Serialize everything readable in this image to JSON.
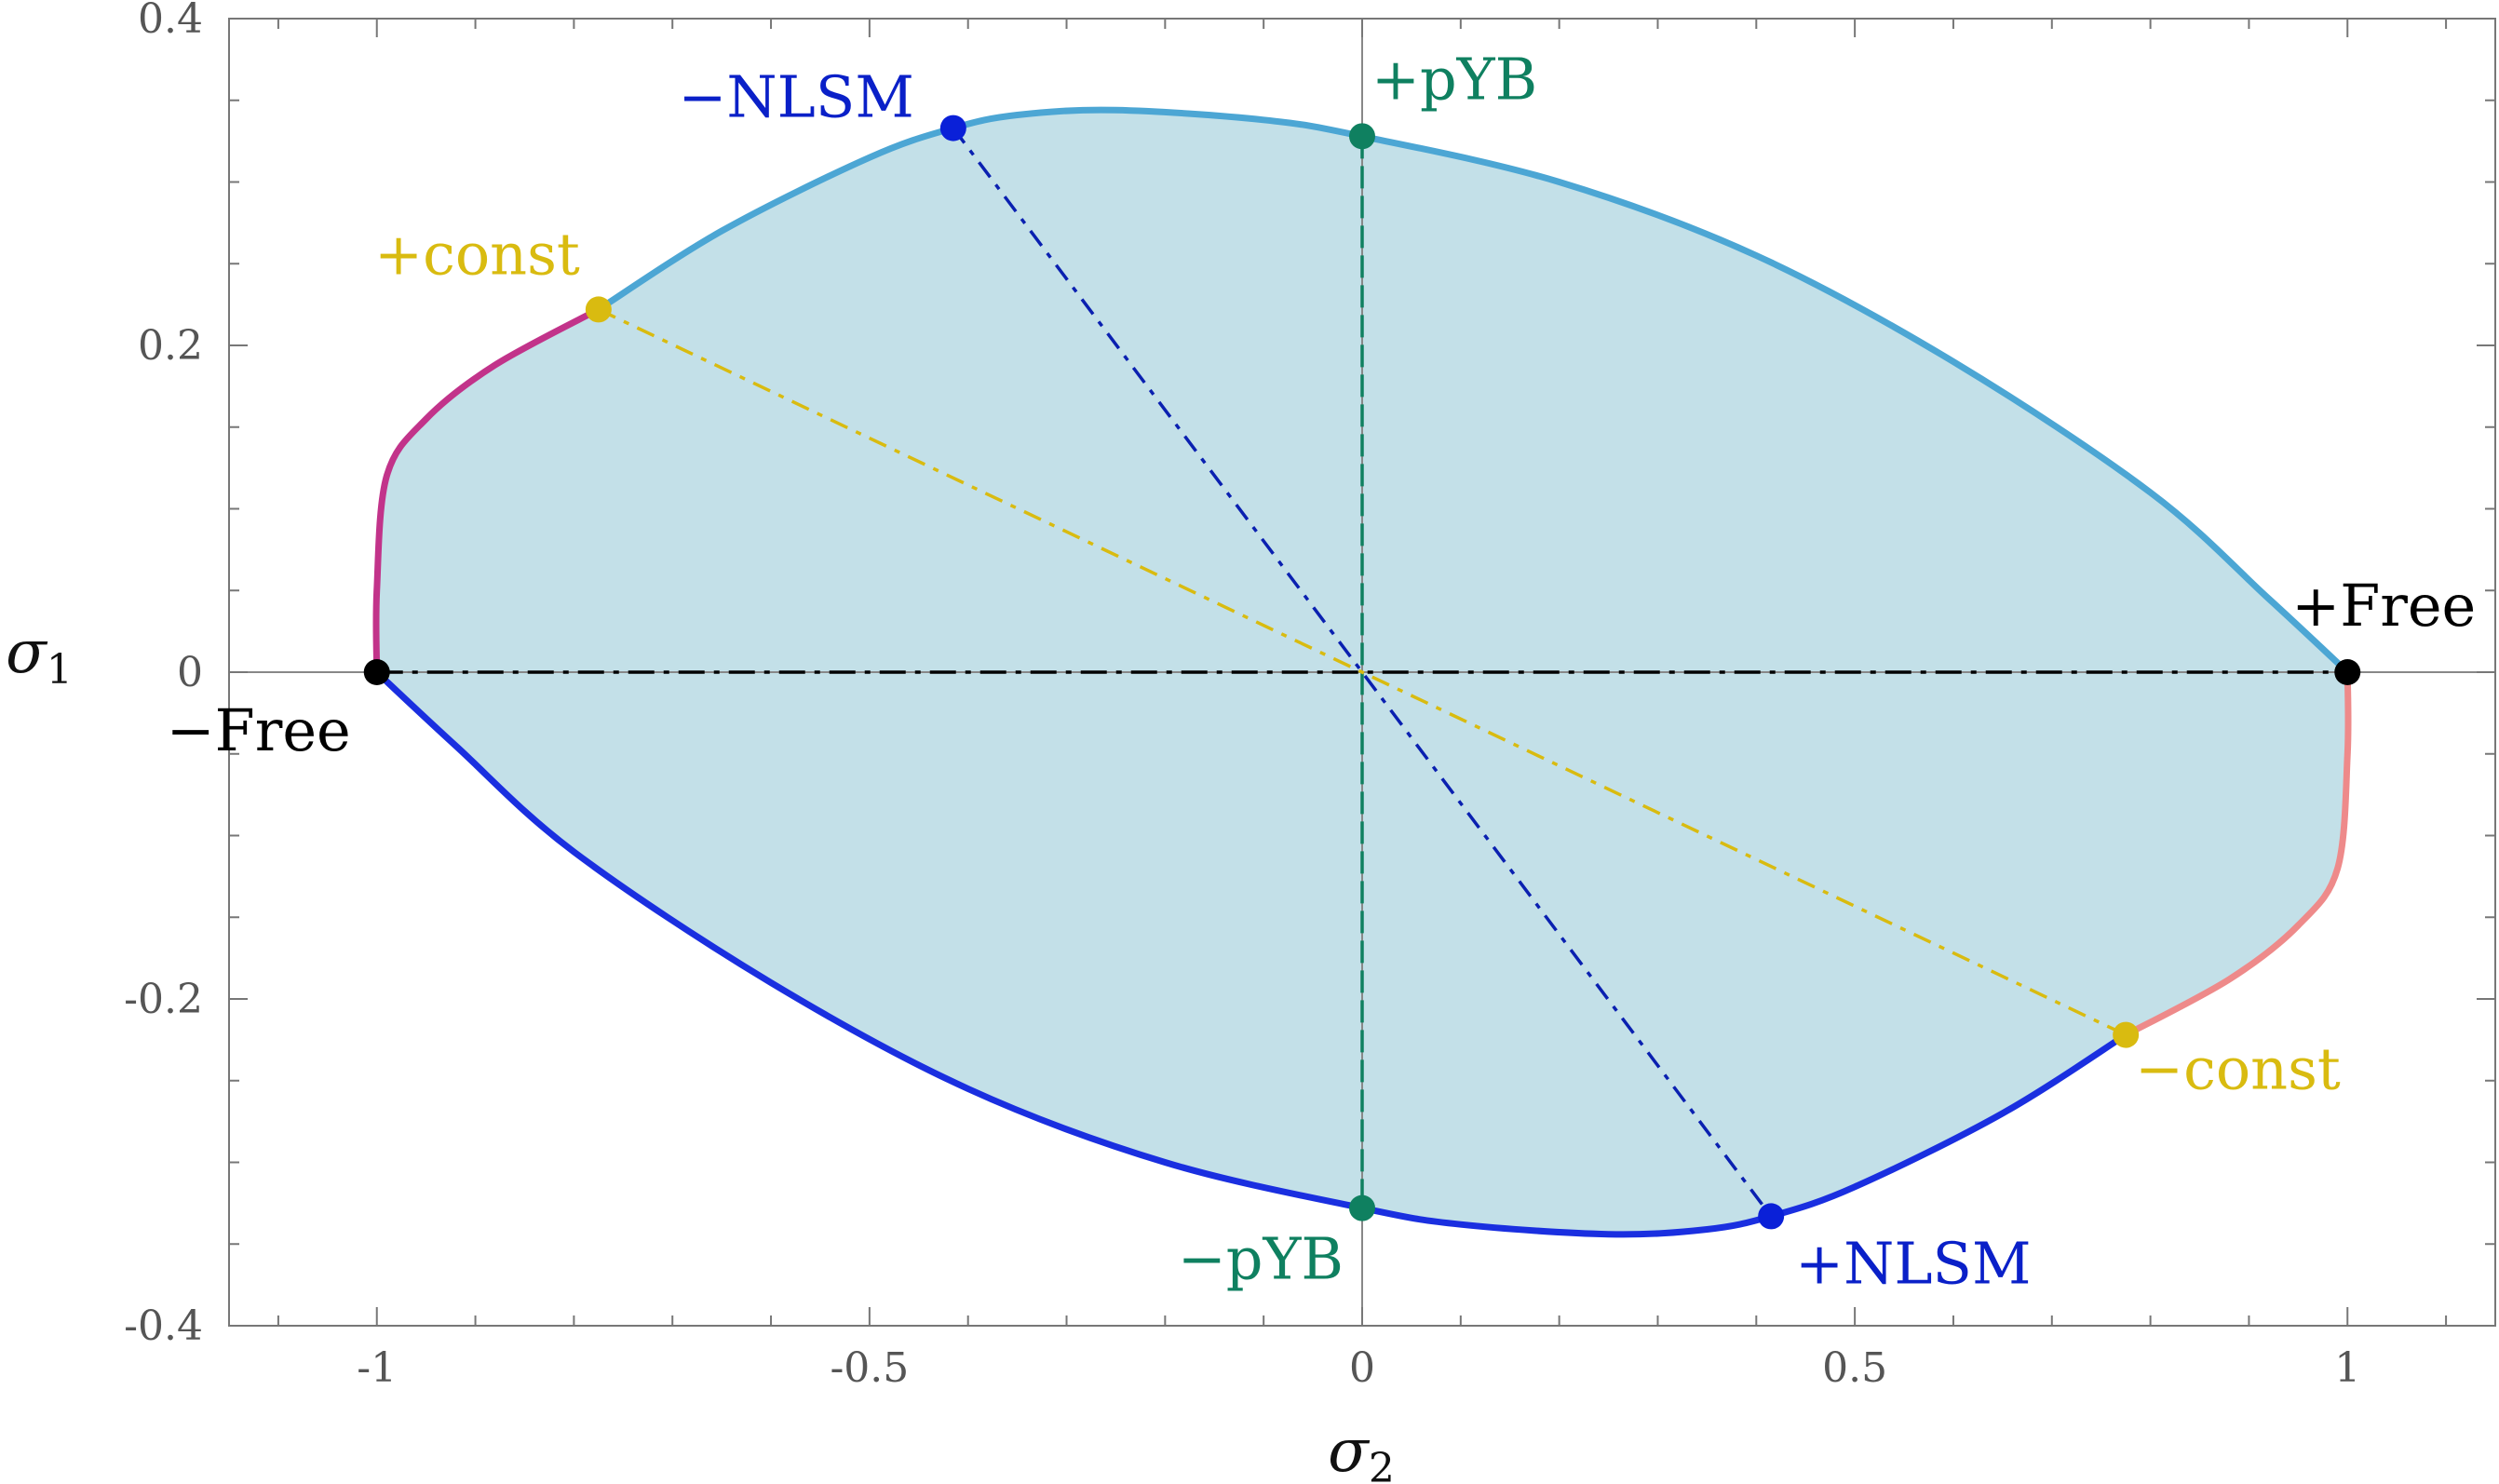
{
  "chart_data": {
    "type": "line",
    "title": "",
    "xlabel": "σ2",
    "ylabel": "σ1",
    "xlim": [
      -1.15,
      1.15
    ],
    "ylim": [
      -0.4,
      0.4
    ],
    "xticks": [
      -1,
      -0.5,
      0,
      0.5,
      1
    ],
    "xtick_labels": [
      "-1",
      "-0.5",
      "0",
      "0.5",
      "1"
    ],
    "yticks": [
      -0.4,
      -0.2,
      0,
      0.2,
      0.4
    ],
    "ytick_labels": [
      "-0.4",
      "-0.2",
      "0",
      "0.2",
      "0.4"
    ],
    "grid": false,
    "fill_color": "#c3e0e8",
    "boundary": [
      {
        "color": "#c2338a",
        "points": [
          [
            -1,
            0
          ],
          [
            -1,
            0.05
          ],
          [
            -0.99,
            0.12
          ],
          [
            -0.95,
            0.155
          ],
          [
            -0.88,
            0.188
          ],
          [
            -0.775,
            0.222
          ]
        ]
      },
      {
        "color": "#4ca6d4",
        "points": [
          [
            -0.775,
            0.222
          ],
          [
            -0.65,
            0.27
          ],
          [
            -0.5,
            0.315
          ],
          [
            -0.415,
            0.333
          ],
          [
            -0.35,
            0.341
          ],
          [
            -0.25,
            0.344
          ],
          [
            -0.1,
            0.338
          ],
          [
            0,
            0.328
          ],
          [
            0.2,
            0.3
          ],
          [
            0.4,
            0.255
          ],
          [
            0.6,
            0.19
          ],
          [
            0.8,
            0.11
          ],
          [
            0.92,
            0.045
          ],
          [
            1,
            0
          ]
        ]
      },
      {
        "color": "#ee8a8a",
        "points": [
          [
            1,
            0
          ],
          [
            1,
            -0.05
          ],
          [
            0.99,
            -0.12
          ],
          [
            0.95,
            -0.155
          ],
          [
            0.88,
            -0.188
          ],
          [
            0.775,
            -0.222
          ]
        ]
      },
      {
        "color": "#1a2fe0",
        "points": [
          [
            0.775,
            -0.222
          ],
          [
            0.65,
            -0.27
          ],
          [
            0.5,
            -0.315
          ],
          [
            0.415,
            -0.333
          ],
          [
            0.35,
            -0.341
          ],
          [
            0.25,
            -0.344
          ],
          [
            0.1,
            -0.338
          ],
          [
            0,
            -0.328
          ],
          [
            -0.2,
            -0.3
          ],
          [
            -0.4,
            -0.255
          ],
          [
            -0.6,
            -0.19
          ],
          [
            -0.8,
            -0.11
          ],
          [
            -0.92,
            -0.045
          ],
          [
            -1,
            0
          ]
        ]
      }
    ],
    "diameters": [
      {
        "color": "#000000",
        "dash": "28,10,6,10",
        "from": [
          -1,
          0
        ],
        "to": [
          1,
          0
        ]
      },
      {
        "color": "#0a20b0",
        "dash": "20,10,6,10",
        "from": [
          -0.415,
          0.333
        ],
        "to": [
          0.415,
          -0.333
        ]
      },
      {
        "color": "#0f8060",
        "dash": "24,8",
        "from": [
          0,
          0.328
        ],
        "to": [
          0,
          -0.328
        ]
      },
      {
        "color": "#d9bb10",
        "dash": "20,10,6,10",
        "from": [
          -0.775,
          0.222
        ],
        "to": [
          0.775,
          -0.222
        ]
      }
    ],
    "points": [
      {
        "label": "−Free",
        "x": -1,
        "y": 0,
        "color": "#000000",
        "label_color": "#000000",
        "anchor": "below-left"
      },
      {
        "label": "+Free",
        "x": 1,
        "y": 0,
        "color": "#000000",
        "label_color": "#000000",
        "anchor": "above-right"
      },
      {
        "label": "−NLSM",
        "x": -0.415,
        "y": 0.333,
        "color": "#0a20d8",
        "label_color": "#0a20c8",
        "anchor": "left"
      },
      {
        "label": "+NLSM",
        "x": 0.415,
        "y": -0.333,
        "color": "#0a20d8",
        "label_color": "#0a20c8",
        "anchor": "below-right"
      },
      {
        "label": "+pYB",
        "x": 0,
        "y": 0.328,
        "color": "#0f8060",
        "label_color": "#0f8060",
        "anchor": "above-right"
      },
      {
        "label": "−pYB",
        "x": 0,
        "y": -0.328,
        "color": "#0f8060",
        "label_color": "#0f8060",
        "anchor": "below-left"
      },
      {
        "label": "+const",
        "x": -0.775,
        "y": 0.222,
        "color": "#d9bb10",
        "label_color": "#d9bb10",
        "anchor": "above-left"
      },
      {
        "label": "−const",
        "x": 0.775,
        "y": -0.222,
        "color": "#d9bb10",
        "label_color": "#d9bb10",
        "anchor": "below-right"
      }
    ]
  }
}
